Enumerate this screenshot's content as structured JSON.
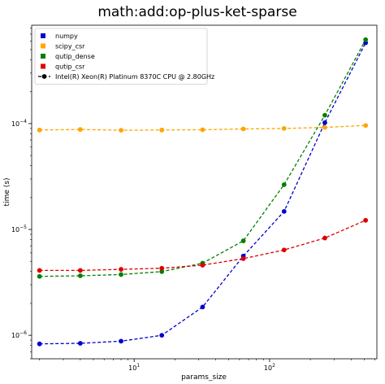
{
  "chart_data": {
    "type": "line",
    "title": "math:add:op-plus-ket-sparse",
    "xlabel": "params_size",
    "ylabel": "time (s)",
    "xscale": "log",
    "yscale": "log",
    "xlim": [
      1.75,
      620
    ],
    "ylim": [
      6e-07,
      0.00085
    ],
    "x": [
      2,
      4,
      8,
      16,
      32,
      64,
      128,
      256,
      512
    ],
    "x_ticks": [
      {
        "value": 10,
        "base": "10",
        "exp": "1"
      },
      {
        "value": 100,
        "base": "10",
        "exp": "2"
      }
    ],
    "y_ticks": [
      {
        "value": 1e-06,
        "base": "10",
        "exp": "−6"
      },
      {
        "value": 1e-05,
        "base": "10",
        "exp": "−5"
      },
      {
        "value": 0.0001,
        "base": "10",
        "exp": "−4"
      }
    ],
    "legend_position": "top-left",
    "legend_group_label": "Intel(R) Xeon(R) Platinum 8370C CPU @ 2.80GHz",
    "series": [
      {
        "name": "numpy",
        "color": "#0000cc",
        "values": [
          8.3e-07,
          8.4e-07,
          8.8e-07,
          1e-06,
          1.85e-06,
          5.6e-06,
          1.48e-05,
          0.000102,
          0.00058
        ]
      },
      {
        "name": "scipy_csr",
        "color": "#ffa500",
        "values": [
          8.7e-05,
          8.8e-05,
          8.65e-05,
          8.7e-05,
          8.75e-05,
          8.9e-05,
          9e-05,
          9.2e-05,
          9.6e-05
        ]
      },
      {
        "name": "qutip_dense",
        "color": "#008000",
        "values": [
          3.6e-06,
          3.65e-06,
          3.75e-06,
          4e-06,
          4.8e-06,
          7.8e-06,
          2.65e-05,
          0.00012,
          0.00062
        ]
      },
      {
        "name": "qutip_csr",
        "color": "#dd0000",
        "values": [
          4.1e-06,
          4.1e-06,
          4.2e-06,
          4.3e-06,
          4.6e-06,
          5.3e-06,
          6.4e-06,
          8.3e-06,
          1.22e-05
        ]
      }
    ]
  }
}
